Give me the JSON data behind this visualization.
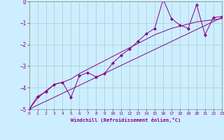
{
  "xlabel": "Windchill (Refroidissement éolien,°C)",
  "bg_color": "#cceeff",
  "line_color": "#880088",
  "grid_color": "#aacccc",
  "xmin": 0,
  "xmax": 23,
  "ymin": -5,
  "ymax": 0,
  "yticks": [
    0,
    -1,
    -2,
    -3,
    -4,
    -5
  ],
  "xticks": [
    0,
    1,
    2,
    3,
    4,
    5,
    6,
    7,
    8,
    9,
    10,
    11,
    12,
    13,
    14,
    15,
    16,
    17,
    18,
    19,
    20,
    21,
    22,
    23
  ],
  "series1_x": [
    0,
    1,
    2,
    3,
    4,
    5,
    6,
    7,
    8,
    9,
    10,
    11,
    12,
    13,
    14,
    15,
    16,
    17,
    18,
    19,
    20,
    21,
    22,
    23
  ],
  "series1_y": [
    -5.0,
    -4.4,
    -4.2,
    -3.85,
    -3.75,
    -4.45,
    -3.45,
    -3.3,
    -3.5,
    -3.35,
    -2.85,
    -2.5,
    -2.2,
    -1.85,
    -1.5,
    -1.25,
    0.1,
    -0.8,
    -1.1,
    -1.25,
    -0.15,
    -1.55,
    -0.75,
    -0.7
  ],
  "series2_x": [
    0,
    1,
    2,
    3,
    4,
    5,
    6,
    7,
    8,
    9,
    10,
    11,
    12,
    13,
    14,
    15,
    16,
    17,
    18,
    19,
    20,
    21,
    22,
    23
  ],
  "series2_y": [
    -5.0,
    -4.5,
    -4.15,
    -3.85,
    -3.75,
    -3.6,
    -3.35,
    -3.15,
    -2.95,
    -2.75,
    -2.55,
    -2.35,
    -2.15,
    -1.95,
    -1.75,
    -1.55,
    -1.4,
    -1.25,
    -1.15,
    -1.05,
    -0.95,
    -0.9,
    -0.85,
    -0.8
  ],
  "series3_x": [
    0,
    23
  ],
  "series3_y": [
    -5.0,
    -0.75
  ]
}
